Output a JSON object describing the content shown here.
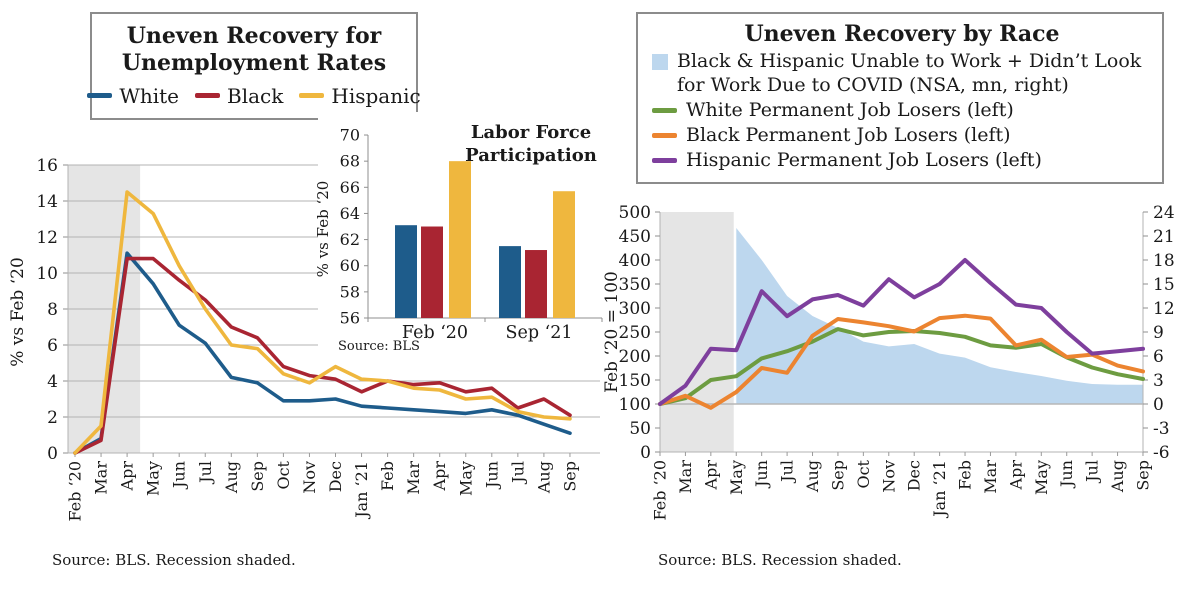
{
  "colors": {
    "white_series": "#1E5C8B",
    "black_series": "#A92532",
    "hispanic_series": "#EFB73E",
    "green_series": "#6D9C41",
    "orange_series": "#EC8430",
    "purple_series": "#7E3F9D",
    "covid_area": "#BDD7EE",
    "recession_shade": "#E5E5E5",
    "gridline": "#B3B3B3",
    "text": "#1A1A1A"
  },
  "chart_data": [
    {
      "id": "unemployment_rates",
      "type": "line",
      "title": "Uneven Recovery for Unemployment Rates",
      "title_lines": [
        "Uneven Recovery for",
        "Unemployment Rates"
      ],
      "ylabel": "% vs Feb ‘20",
      "ylim": [
        0,
        16
      ],
      "yticks": [
        0,
        2,
        4,
        6,
        8,
        10,
        12,
        14,
        16
      ],
      "grid": true,
      "legend_position": "top-box",
      "recession_shaded": true,
      "categories": [
        "Feb ‘20",
        "Mar",
        "Apr",
        "May",
        "Jun",
        "Jul",
        "Aug",
        "Sep",
        "Oct",
        "Nov",
        "Dec",
        "Jan ‘21",
        "Feb",
        "Mar",
        "Apr",
        "May",
        "Jun",
        "Jul",
        "Aug",
        "Sep"
      ],
      "series": [
        {
          "name": "White",
          "color": "#1E5C8B",
          "values": [
            0,
            0.8,
            11.1,
            9.4,
            7.1,
            6.1,
            4.2,
            3.9,
            2.9,
            2.9,
            3.0,
            2.6,
            2.5,
            2.4,
            2.3,
            2.2,
            2.4,
            2.1,
            1.6,
            1.1
          ]
        },
        {
          "name": "Black",
          "color": "#A92532",
          "values": [
            0,
            0.7,
            10.8,
            10.8,
            9.6,
            8.5,
            7.0,
            6.4,
            4.8,
            4.3,
            4.1,
            3.4,
            4.0,
            3.8,
            3.9,
            3.4,
            3.6,
            2.5,
            3.0,
            2.1
          ]
        },
        {
          "name": "Hispanic",
          "color": "#EFB73E",
          "values": [
            0,
            1.5,
            14.5,
            13.3,
            10.4,
            8.0,
            6.0,
            5.8,
            4.4,
            3.9,
            4.8,
            4.1,
            4.0,
            3.6,
            3.5,
            3.0,
            3.1,
            2.3,
            2.0,
            1.9
          ]
        }
      ],
      "source": "Source:  BLS. Recession shaded."
    },
    {
      "id": "labor_force_participation",
      "type": "bar",
      "title": "Labor Force Participation",
      "title_lines": [
        "Labor Force",
        "Participation"
      ],
      "ylabel": "% vs Feb ‘20",
      "ylim": [
        56,
        70
      ],
      "yticks": [
        56,
        58,
        60,
        62,
        64,
        66,
        68,
        70
      ],
      "categories": [
        "Feb ‘20",
        "Sep ‘21"
      ],
      "series": [
        {
          "name": "White",
          "color": "#1E5C8B",
          "values": [
            63.1,
            61.5
          ]
        },
        {
          "name": "Black",
          "color": "#A92532",
          "values": [
            63.0,
            61.2
          ]
        },
        {
          "name": "Hispanic",
          "color": "#EFB73E",
          "values": [
            68.0,
            65.7
          ]
        }
      ],
      "source": "Source:  BLS"
    },
    {
      "id": "permanent_job_losers",
      "type": "line+area",
      "title": "Uneven Recovery by Race",
      "ylabel_left": "Feb ‘20 = 100",
      "ylim_left": [
        0,
        500
      ],
      "yticks_left": [
        0,
        50,
        100,
        150,
        200,
        250,
        300,
        350,
        400,
        450,
        500
      ],
      "ylim_right": [
        -6,
        24
      ],
      "yticks_right": [
        -6,
        -3,
        0,
        3,
        6,
        9,
        12,
        15,
        18,
        21,
        24
      ],
      "baseline_left": 100,
      "grid": false,
      "legend_position": "top-box",
      "recession_shaded": true,
      "categories": [
        "Feb ‘20",
        "Mar",
        "Apr",
        "May",
        "Jun",
        "Jul",
        "Aug",
        "Sep",
        "Oct",
        "Nov",
        "Dec",
        "Jan ‘21",
        "Feb",
        "Mar",
        "Apr",
        "May",
        "Jun",
        "Jul",
        "Aug",
        "Sep"
      ],
      "area": {
        "name": "Black & Hispanic Unable to Work + Didn’t Look for Work Due to COVID (NSA, mn, right)",
        "color": "#BDD7EE",
        "axis": "right",
        "values": [
          null,
          null,
          null,
          22,
          18,
          13.5,
          11,
          9.5,
          7.8,
          7.2,
          7.5,
          6.3,
          5.8,
          4.6,
          4.0,
          3.5,
          2.9,
          2.5,
          2.4,
          2.4
        ]
      },
      "series": [
        {
          "name": "White Permanent Job Losers (left)",
          "color": "#6D9C41",
          "values": [
            100,
            112,
            150,
            158,
            195,
            210,
            230,
            256,
            243,
            250,
            252,
            248,
            240,
            222,
            217,
            225,
            197,
            176,
            162,
            152
          ]
        },
        {
          "name": "Black Permanent Job Losers (left)",
          "color": "#EC8430",
          "values": [
            100,
            117,
            92,
            125,
            175,
            165,
            242,
            277,
            270,
            262,
            251,
            279,
            284,
            278,
            222,
            234,
            198,
            203,
            180,
            168
          ]
        },
        {
          "name": "Hispanic Permanent Job Losers (left)",
          "color": "#7E3F9D",
          "values": [
            100,
            138,
            215,
            212,
            335,
            283,
            318,
            327,
            305,
            360,
            322,
            350,
            400,
            352,
            307,
            300,
            250,
            205,
            210,
            215
          ]
        }
      ],
      "source": "Source:  BLS. Recession shaded."
    }
  ]
}
